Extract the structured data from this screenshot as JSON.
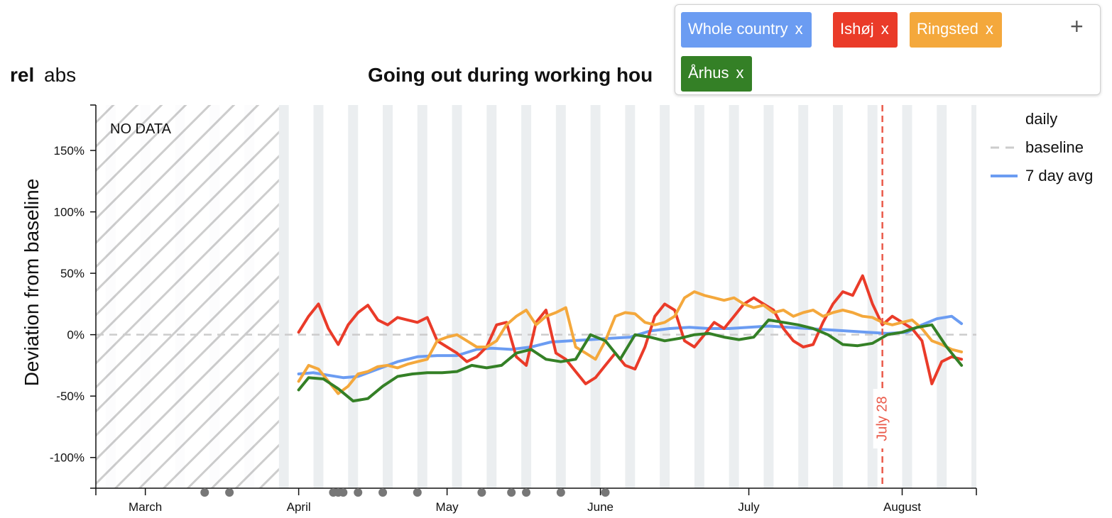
{
  "mode": {
    "rel_label": "rel",
    "abs_label": "abs",
    "selected": "rel"
  },
  "regions": {
    "add_label": "+",
    "remove_label": "x",
    "chips": [
      {
        "name": "Whole country",
        "color": "#6b9cf2"
      },
      {
        "name": "Ishøj",
        "color": "#ea3b29"
      },
      {
        "name": "Ringsted",
        "color": "#f4a83c"
      },
      {
        "name": "Århus",
        "color": "#348026"
      }
    ]
  },
  "legend": {
    "heading": "daily",
    "baseline_label": "baseline",
    "avg_label": "7 day avg",
    "baseline_color": "#cccccc",
    "avg_color": "#6b9cf2"
  },
  "chart_data": {
    "type": "line",
    "title": "Going out during working hou",
    "ylabel": "Deviation from baseline",
    "xlabel": "",
    "y_unit": "%",
    "ylim": [
      -125,
      187
    ],
    "xlim": [
      "2020-02-20",
      "2020-08-16"
    ],
    "yticks": [
      150,
      100,
      50,
      0,
      -50,
      -100
    ],
    "ytick_labels": [
      "150%",
      "100%",
      "50%",
      "0%",
      "-50%",
      "-100%"
    ],
    "xticks": [
      "2020-03-01",
      "2020-04-01",
      "2020-05-01",
      "2020-06-01",
      "2020-07-01",
      "2020-08-01"
    ],
    "xtick_labels": [
      "March",
      "April",
      "May",
      "June",
      "July",
      "August"
    ],
    "no_data": {
      "from": "2020-02-20",
      "to": "2020-03-28",
      "label": "NO DATA"
    },
    "marker": {
      "date": "2020-07-28",
      "label": "July 28",
      "color": "#ea5a4a"
    },
    "holidays": [
      "2020-03-13",
      "2020-03-18",
      "2020-04-08",
      "2020-04-09",
      "2020-04-10",
      "2020-04-13",
      "2020-04-18",
      "2020-04-25",
      "2020-05-08",
      "2020-05-14",
      "2020-05-17",
      "2020-05-24",
      "2020-06-02"
    ],
    "baseline": 0,
    "grid": false,
    "legend_position": "right",
    "series": [
      {
        "name": "Whole country",
        "color": "#6b9cf2",
        "x": [
          "2020-04-01",
          "2020-04-04",
          "2020-04-07",
          "2020-04-10",
          "2020-04-13",
          "2020-04-17",
          "2020-04-21",
          "2020-04-25",
          "2020-04-29",
          "2020-05-03",
          "2020-05-07",
          "2020-05-10",
          "2020-05-14",
          "2020-05-18",
          "2020-05-22",
          "2020-05-26",
          "2020-05-30",
          "2020-06-03",
          "2020-06-07",
          "2020-06-11",
          "2020-06-15",
          "2020-06-19",
          "2020-06-23",
          "2020-06-27",
          "2020-07-01",
          "2020-07-05",
          "2020-07-09",
          "2020-07-13",
          "2020-07-17",
          "2020-07-21",
          "2020-07-25",
          "2020-07-29",
          "2020-08-02",
          "2020-08-05",
          "2020-08-08",
          "2020-08-11",
          "2020-08-13"
        ],
        "y": [
          -32,
          -31,
          -33,
          -35,
          -34,
          -28,
          -22,
          -18,
          -17,
          -17,
          -12,
          -11,
          -12,
          -10,
          -6,
          -5,
          -4,
          -3,
          -2,
          3,
          5,
          6,
          5,
          5,
          6,
          7,
          6,
          5,
          4,
          3,
          2,
          1,
          2,
          8,
          13,
          15,
          9
        ]
      },
      {
        "name": "Ishøj",
        "color": "#ea3b29",
        "x": [
          "2020-04-01",
          "2020-04-03",
          "2020-04-05",
          "2020-04-07",
          "2020-04-09",
          "2020-04-11",
          "2020-04-13",
          "2020-04-15",
          "2020-04-17",
          "2020-04-19",
          "2020-04-21",
          "2020-04-23",
          "2020-04-25",
          "2020-04-27",
          "2020-04-29",
          "2020-05-01",
          "2020-05-03",
          "2020-05-05",
          "2020-05-07",
          "2020-05-09",
          "2020-05-11",
          "2020-05-13",
          "2020-05-15",
          "2020-05-17",
          "2020-05-19",
          "2020-05-21",
          "2020-05-23",
          "2020-05-25",
          "2020-05-27",
          "2020-05-29",
          "2020-05-31",
          "2020-06-02",
          "2020-06-04",
          "2020-06-06",
          "2020-06-08",
          "2020-06-10",
          "2020-06-12",
          "2020-06-14",
          "2020-06-16",
          "2020-06-18",
          "2020-06-20",
          "2020-06-22",
          "2020-06-24",
          "2020-06-26",
          "2020-06-28",
          "2020-06-30",
          "2020-07-02",
          "2020-07-04",
          "2020-07-06",
          "2020-07-08",
          "2020-07-10",
          "2020-07-12",
          "2020-07-14",
          "2020-07-16",
          "2020-07-18",
          "2020-07-20",
          "2020-07-22",
          "2020-07-24",
          "2020-07-26",
          "2020-07-28",
          "2020-07-30",
          "2020-08-01",
          "2020-08-03",
          "2020-08-05",
          "2020-08-07",
          "2020-08-09",
          "2020-08-11",
          "2020-08-13"
        ],
        "y": [
          2,
          15,
          25,
          5,
          -8,
          8,
          18,
          24,
          12,
          8,
          14,
          12,
          10,
          14,
          -5,
          -10,
          -15,
          -22,
          -18,
          -10,
          8,
          10,
          -18,
          -25,
          10,
          20,
          -15,
          -20,
          -30,
          -40,
          -35,
          -25,
          -15,
          -25,
          -28,
          -10,
          15,
          25,
          20,
          -5,
          -10,
          0,
          10,
          5,
          15,
          25,
          30,
          25,
          20,
          5,
          -5,
          -10,
          -8,
          10,
          25,
          35,
          32,
          48,
          25,
          8,
          15,
          10,
          5,
          -5,
          -40,
          -22,
          -18,
          -20
        ]
      },
      {
        "name": "Ringsted",
        "color": "#f4a83c",
        "x": [
          "2020-04-01",
          "2020-04-03",
          "2020-04-05",
          "2020-04-07",
          "2020-04-09",
          "2020-04-11",
          "2020-04-13",
          "2020-04-15",
          "2020-04-17",
          "2020-04-19",
          "2020-04-21",
          "2020-04-23",
          "2020-04-25",
          "2020-04-27",
          "2020-04-29",
          "2020-05-01",
          "2020-05-03",
          "2020-05-05",
          "2020-05-07",
          "2020-05-09",
          "2020-05-11",
          "2020-05-13",
          "2020-05-15",
          "2020-05-17",
          "2020-05-19",
          "2020-05-21",
          "2020-05-23",
          "2020-05-25",
          "2020-05-27",
          "2020-05-29",
          "2020-05-31",
          "2020-06-02",
          "2020-06-04",
          "2020-06-06",
          "2020-06-08",
          "2020-06-10",
          "2020-06-12",
          "2020-06-14",
          "2020-06-16",
          "2020-06-18",
          "2020-06-20",
          "2020-06-22",
          "2020-06-24",
          "2020-06-26",
          "2020-06-28",
          "2020-06-30",
          "2020-07-02",
          "2020-07-04",
          "2020-07-06",
          "2020-07-08",
          "2020-07-10",
          "2020-07-12",
          "2020-07-14",
          "2020-07-16",
          "2020-07-18",
          "2020-07-20",
          "2020-07-22",
          "2020-07-24",
          "2020-07-26",
          "2020-07-28",
          "2020-07-30",
          "2020-08-01",
          "2020-08-03",
          "2020-08-05",
          "2020-08-07",
          "2020-08-09",
          "2020-08-11",
          "2020-08-13"
        ],
        "y": [
          -38,
          -25,
          -28,
          -38,
          -48,
          -42,
          -32,
          -30,
          -26,
          -25,
          -27,
          -24,
          -22,
          -20,
          -5,
          -2,
          0,
          -5,
          -10,
          -10,
          -5,
          8,
          15,
          20,
          8,
          15,
          18,
          22,
          -10,
          -15,
          -20,
          -5,
          15,
          18,
          17,
          10,
          8,
          10,
          15,
          30,
          35,
          32,
          30,
          28,
          30,
          25,
          22,
          24,
          18,
          20,
          15,
          18,
          20,
          15,
          18,
          20,
          18,
          15,
          14,
          10,
          8,
          10,
          12,
          5,
          -5,
          -8,
          -12,
          -14
        ]
      },
      {
        "name": "Århus",
        "color": "#348026",
        "x": [
          "2020-04-01",
          "2020-04-03",
          "2020-04-06",
          "2020-04-09",
          "2020-04-12",
          "2020-04-15",
          "2020-04-18",
          "2020-04-21",
          "2020-04-24",
          "2020-04-27",
          "2020-04-30",
          "2020-05-03",
          "2020-05-06",
          "2020-05-09",
          "2020-05-12",
          "2020-05-15",
          "2020-05-18",
          "2020-05-21",
          "2020-05-24",
          "2020-05-27",
          "2020-05-30",
          "2020-06-02",
          "2020-06-05",
          "2020-06-08",
          "2020-06-11",
          "2020-06-14",
          "2020-06-17",
          "2020-06-20",
          "2020-06-23",
          "2020-06-26",
          "2020-06-29",
          "2020-07-02",
          "2020-07-05",
          "2020-07-08",
          "2020-07-11",
          "2020-07-14",
          "2020-07-17",
          "2020-07-20",
          "2020-07-23",
          "2020-07-26",
          "2020-07-29",
          "2020-08-01",
          "2020-08-04",
          "2020-08-07",
          "2020-08-10",
          "2020-08-13"
        ],
        "y": [
          -45,
          -35,
          -36,
          -44,
          -54,
          -52,
          -42,
          -34,
          -32,
          -31,
          -31,
          -30,
          -25,
          -27,
          -25,
          -15,
          -12,
          -20,
          -22,
          -20,
          0,
          -5,
          -20,
          0,
          -2,
          -5,
          -3,
          0,
          1,
          -2,
          -4,
          -2,
          12,
          10,
          8,
          5,
          0,
          -8,
          -9,
          -7,
          0,
          2,
          6,
          8,
          -10,
          -25
        ]
      }
    ]
  }
}
